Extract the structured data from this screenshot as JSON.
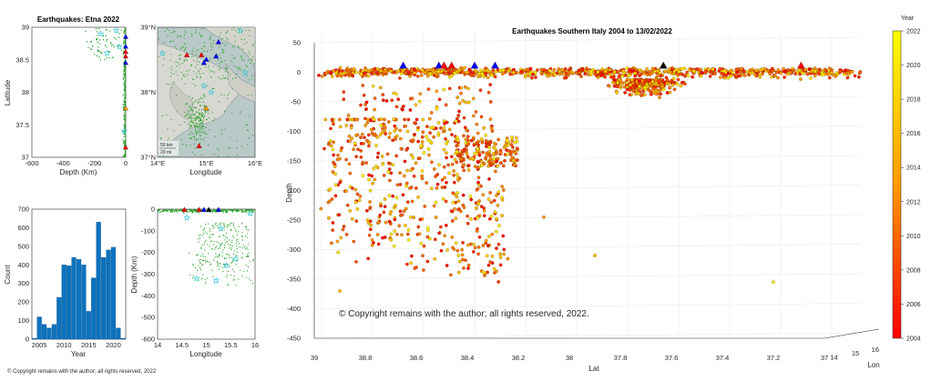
{
  "colors": {
    "eq_green": "#22a022",
    "hist_bar": "#0c72bd",
    "map_bg": "#b9c9c8",
    "triangle_red": "#ff0000",
    "triangle_blue": "#0000ff",
    "triangle_black": "#000000",
    "triangle_orange": "#ff9900",
    "star_cyan": "#35c7d9"
  },
  "copyright_small": "© Copyright remains with the author; all rights reserved, 2022",
  "chart_data": [
    {
      "id": "etna_depth_lat",
      "type": "scatter",
      "title": "Earthquakes: Etna 2022",
      "xlabel": "Depth (Km)",
      "ylabel": "Latitude",
      "xlim": [
        -600,
        0
      ],
      "ylim": [
        37,
        39
      ],
      "xticks": [
        "-600",
        "-400",
        "-200",
        "0"
      ],
      "yticks": [
        "37",
        "37.5",
        "38",
        "38.5",
        "39"
      ]
    },
    {
      "id": "etna_map",
      "type": "scatter",
      "xlabel": "Longitude",
      "xticks": [
        "14°E",
        "15°E",
        "16°E"
      ],
      "yticks": [
        "37°N",
        "38°N",
        "39°N"
      ],
      "scale_bar": [
        "50 km",
        "20 mi"
      ]
    },
    {
      "id": "year_histogram",
      "type": "bar",
      "xlabel": "Year",
      "ylabel": "Count",
      "ylim": [
        0,
        700
      ],
      "xticks": [
        "2005",
        "2010",
        "2015",
        "2020"
      ],
      "yticks": [
        "0",
        "100",
        "200",
        "300",
        "400",
        "500",
        "600",
        "700"
      ],
      "years": [
        2004,
        2005,
        2006,
        2007,
        2008,
        2009,
        2010,
        2011,
        2012,
        2013,
        2014,
        2015,
        2016,
        2017,
        2018,
        2019,
        2020,
        2021,
        2022
      ],
      "values": [
        5,
        120,
        80,
        60,
        80,
        225,
        400,
        395,
        440,
        430,
        400,
        150,
        330,
        630,
        440,
        480,
        495,
        60,
        5
      ]
    },
    {
      "id": "lon_depth",
      "type": "scatter",
      "xlabel": "Longitude",
      "ylabel": "Depth (Km)",
      "xlim": [
        14,
        16
      ],
      "ylim": [
        -600,
        0
      ],
      "xticks": [
        "14",
        "14.5",
        "15",
        "15.5",
        "16"
      ],
      "yticks": [
        "0",
        "-100",
        "-200",
        "-300",
        "-400",
        "-500",
        "-600"
      ]
    },
    {
      "id": "southern_italy_3d",
      "type": "scatter",
      "title": "Earthquakes Southern Italy 2004 to 13/02/2022",
      "xlabel": "Lat",
      "ylabel": "Lon",
      "zlabel": "Depth",
      "xticks": [
        "39",
        "38.8",
        "38.6",
        "38.4",
        "38.2",
        "38",
        "37.8",
        "37.6",
        "37.4",
        "37.2",
        "37"
      ],
      "yticks": [
        "14",
        "15",
        "16"
      ],
      "zticks": [
        "50",
        "0",
        "-50",
        "-100",
        "-150",
        "-200",
        "-250",
        "-300",
        "-350",
        "-400",
        "-450"
      ],
      "zlim": [
        -450,
        50
      ],
      "annotation": "© Copyright remains with the author; all rights reserved, 2022.",
      "colorbar": {
        "label": "Year",
        "ticks": [
          "2022",
          "2020",
          "2018",
          "2016",
          "2014",
          "2012",
          "2010",
          "2008",
          "2006",
          "2004"
        ],
        "range": [
          2004,
          2022
        ]
      }
    }
  ]
}
